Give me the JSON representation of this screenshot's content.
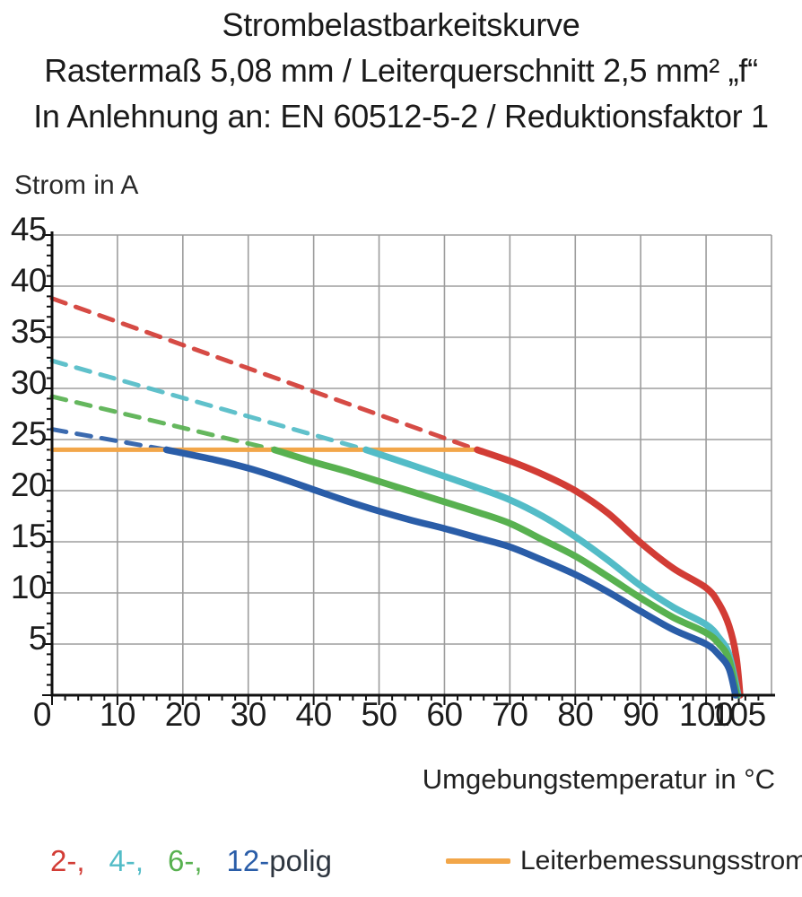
{
  "title": {
    "line1": "Strombelastbarkeitskurve",
    "line2": "Rastermaß 5,08 mm / Leiterquerschnitt 2,5 mm² „f“",
    "line3": "In Anlehnung an: EN 60512-5-2 / Reduktionsfaktor 1"
  },
  "chart_data": {
    "type": "line",
    "title": "Strombelastbarkeitskurve",
    "ylabel": "Strom in A",
    "xlabel": "Umgebungstemperatur in °C",
    "xlim": [
      0,
      110
    ],
    "ylim": [
      0,
      45
    ],
    "grid": {
      "x_step": 10,
      "y_step": 5,
      "on": true,
      "color": "#9d9d9d"
    },
    "axis_color": "#111111",
    "x_ticks": [
      {
        "t": 0,
        "label": "0",
        "anchor": "end"
      },
      {
        "t": 10,
        "label": "10"
      },
      {
        "t": 20,
        "label": "20"
      },
      {
        "t": 30,
        "label": "30"
      },
      {
        "t": 40,
        "label": "40"
      },
      {
        "t": 50,
        "label": "50"
      },
      {
        "t": 60,
        "label": "60"
      },
      {
        "t": 70,
        "label": "70"
      },
      {
        "t": 80,
        "label": "80"
      },
      {
        "t": 90,
        "label": "90"
      },
      {
        "t": 100,
        "label": "100"
      },
      {
        "t": 105,
        "label": "105"
      }
    ],
    "y_ticks": [
      {
        "a": 5,
        "label": "5"
      },
      {
        "a": 10,
        "label": "10"
      },
      {
        "a": 15,
        "label": "15"
      },
      {
        "a": 20,
        "label": "20"
      },
      {
        "a": 25,
        "label": "25"
      },
      {
        "a": 30,
        "label": "30"
      },
      {
        "a": 35,
        "label": "35"
      },
      {
        "a": 40,
        "label": "40"
      },
      {
        "a": 45,
        "label": "45"
      }
    ],
    "x_minor_tick_step": 2,
    "y_minor_tick_step": 1,
    "rated_current_line": {
      "name": "Leiterbemessungsstrom",
      "current_a": 24,
      "from_c": 0,
      "to_c": 64.5,
      "color": "#f2a649"
    },
    "series": [
      {
        "name": "2-polig",
        "color": "#d23c35",
        "dashed_points": [
          [
            0,
            38.8
          ],
          [
            65,
            24
          ]
        ],
        "solid_points": [
          [
            65,
            24
          ],
          [
            70,
            22.9
          ],
          [
            75,
            21.6
          ],
          [
            80,
            20.0
          ],
          [
            85,
            17.8
          ],
          [
            90,
            14.9
          ],
          [
            95,
            12.4
          ],
          [
            100,
            10.5
          ],
          [
            102,
            8.9
          ],
          [
            103.5,
            6.8
          ],
          [
            104.6,
            3.8
          ],
          [
            105.2,
            0
          ]
        ]
      },
      {
        "name": "4-polig",
        "color": "#53bcc7",
        "dashed_points": [
          [
            0,
            32.7
          ],
          [
            48,
            24
          ]
        ],
        "solid_points": [
          [
            48,
            24
          ],
          [
            55,
            22.5
          ],
          [
            60,
            21.4
          ],
          [
            65,
            20.3
          ],
          [
            70,
            19.1
          ],
          [
            75,
            17.5
          ],
          [
            80,
            15.5
          ],
          [
            85,
            13.2
          ],
          [
            90,
            10.7
          ],
          [
            95,
            8.6
          ],
          [
            100,
            6.9
          ],
          [
            102,
            5.6
          ],
          [
            103.5,
            4.0
          ],
          [
            104.9,
            0
          ]
        ]
      },
      {
        "name": "6-polig",
        "color": "#58b150",
        "dashed_points": [
          [
            0,
            29.2
          ],
          [
            34,
            24
          ]
        ],
        "solid_points": [
          [
            34,
            24
          ],
          [
            40,
            22.8
          ],
          [
            45,
            21.9
          ],
          [
            50,
            20.9
          ],
          [
            55,
            19.9
          ],
          [
            60,
            18.9
          ],
          [
            65,
            17.9
          ],
          [
            70,
            16.8
          ],
          [
            75,
            15.2
          ],
          [
            80,
            13.6
          ],
          [
            85,
            11.6
          ],
          [
            90,
            9.5
          ],
          [
            95,
            7.6
          ],
          [
            100,
            6.1
          ],
          [
            102,
            5.0
          ],
          [
            103.5,
            3.5
          ],
          [
            104.7,
            0
          ]
        ]
      },
      {
        "name": "12-polig",
        "color": "#2a5da8",
        "dashed_points": [
          [
            0,
            26.0
          ],
          [
            17.5,
            24
          ]
        ],
        "solid_points": [
          [
            17.5,
            24
          ],
          [
            25,
            23.0
          ],
          [
            30,
            22.2
          ],
          [
            35,
            21.2
          ],
          [
            40,
            20.1
          ],
          [
            45,
            19.0
          ],
          [
            50,
            18.0
          ],
          [
            55,
            17.1
          ],
          [
            60,
            16.3
          ],
          [
            65,
            15.4
          ],
          [
            70,
            14.5
          ],
          [
            75,
            13.2
          ],
          [
            80,
            11.8
          ],
          [
            85,
            10.1
          ],
          [
            90,
            8.2
          ],
          [
            95,
            6.4
          ],
          [
            100,
            5.0
          ],
          [
            102,
            3.9
          ],
          [
            103.5,
            2.6
          ],
          [
            104.5,
            0
          ]
        ]
      }
    ]
  },
  "legend": {
    "poles": [
      {
        "label": "2-,",
        "series": "2-polig",
        "color": "#d23c35"
      },
      {
        "label": "4-,",
        "series": "4-polig",
        "color": "#53bcc7"
      },
      {
        "label": "6-,",
        "series": "6-polig",
        "color": "#58b150"
      },
      {
        "label": "12-",
        "series": "12-polig",
        "color": "#2a5da8"
      }
    ],
    "poles_suffix": "polig",
    "rated": {
      "label": "Leiterbemessungsstrom",
      "color": "#f2a649"
    }
  }
}
